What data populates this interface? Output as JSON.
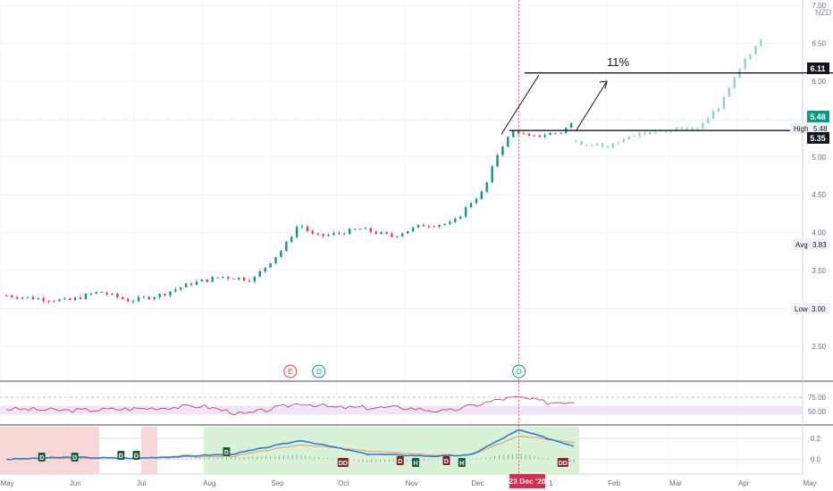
{
  "currency": "NZD",
  "annotation_11pct": "11%",
  "cursor_date_label": "23 Dec '20",
  "price_labels": {
    "target": "6.11",
    "current": "5.48",
    "high_label": "High",
    "high_value": "5.48",
    "last": "5.35",
    "avg_label": "Avg",
    "avg_value": "3.83",
    "low_label": "Low",
    "low_value": "3.00"
  },
  "events": [
    {
      "letter": "E",
      "color": "#f23645",
      "date": "2020-09-10"
    },
    {
      "letter": "D",
      "color": "#089981",
      "date": "2020-09-23"
    },
    {
      "letter": "D",
      "color": "#089981",
      "date": "2020-12-23"
    }
  ],
  "colors": {
    "up": "#089981",
    "down": "#f23645",
    "projection": "#8fd3c7",
    "rsi_line": "#c2484e",
    "rsi_band": "#efe4fb",
    "ind_blue": "#2a7fd4",
    "ind_orange": "#f3916b"
  },
  "chart_data": [
    {
      "type": "candlestick",
      "name": "price",
      "y_ticks": [
        "7.00",
        "6.50",
        "6.00",
        "5.50",
        "5.00",
        "4.50",
        "4.00",
        "3.50",
        "3.00",
        "2.50"
      ],
      "x_ticks": [
        "May",
        "Jun",
        "Jul",
        "Aug",
        "Sep",
        "Oct",
        "Nov",
        "Dec",
        "Feb",
        "Mar",
        "Apr",
        "May"
      ],
      "ylim": [
        2.05,
        7.05
      ],
      "x_range": [
        "2020-05-01",
        "2021-05-01"
      ],
      "x": [
        "2020-05-04",
        "2020-05-18",
        "2020-06-01",
        "2020-06-15",
        "2020-06-29",
        "2020-07-13",
        "2020-07-27",
        "2020-08-10",
        "2020-08-24",
        "2020-09-07",
        "2020-09-14",
        "2020-09-21",
        "2020-09-28",
        "2020-10-12",
        "2020-10-26",
        "2020-11-09",
        "2020-11-23",
        "2020-12-01",
        "2020-12-07",
        "2020-12-14",
        "2020-12-21",
        "2020-12-28",
        "2021-01-04",
        "2021-01-11",
        "2021-01-18"
      ],
      "close": [
        3.17,
        3.13,
        3.1,
        3.22,
        3.1,
        3.18,
        3.33,
        3.42,
        3.38,
        3.8,
        4.12,
        3.95,
        3.97,
        4.05,
        3.95,
        4.1,
        4.12,
        4.4,
        4.55,
        5.1,
        5.36,
        5.25,
        5.3,
        5.33,
        5.48
      ],
      "high": 5.48,
      "avg": 3.83,
      "low": 3.0,
      "target_line": 6.11,
      "support_line": 5.35,
      "projection": {
        "x": [
          "2021-01-18",
          "2021-02-01",
          "2021-02-15",
          "2021-03-01",
          "2021-03-15",
          "2021-03-25",
          "2021-04-05",
          "2021-04-12"
        ],
        "close": [
          5.2,
          5.13,
          5.3,
          5.35,
          5.4,
          5.7,
          6.3,
          6.55
        ]
      }
    },
    {
      "type": "line",
      "name": "rsi",
      "y_ticks": [
        "75.00",
        "50.00"
      ],
      "ylim": [
        30,
        100
      ],
      "x": [
        "2020-05-04",
        "2020-06-01",
        "2020-07-01",
        "2020-08-01",
        "2020-08-20",
        "2020-09-15",
        "2020-10-01",
        "2020-11-01",
        "2020-11-20",
        "2020-12-15",
        "2020-12-23",
        "2021-01-05",
        "2021-01-18"
      ],
      "values": [
        55,
        52,
        55,
        60,
        45,
        65,
        57,
        57,
        50,
        72,
        75,
        66,
        68
      ]
    },
    {
      "type": "line",
      "name": "oscillator",
      "y_ticks": [
        "0.2",
        "0.0"
      ],
      "ylim": [
        -0.14,
        0.31
      ],
      "x": [
        "2020-05-04",
        "2020-06-01",
        "2020-07-01",
        "2020-08-15",
        "2020-09-15",
        "2020-10-15",
        "2020-11-15",
        "2020-12-01",
        "2020-12-23",
        "2021-01-18"
      ],
      "values": [
        0.0,
        0.02,
        0.01,
        0.05,
        0.18,
        0.05,
        0.03,
        0.04,
        0.28,
        0.12
      ],
      "signal": [
        0.0,
        0.01,
        0.01,
        0.03,
        0.14,
        0.08,
        0.04,
        0.04,
        0.22,
        0.16
      ]
    }
  ]
}
